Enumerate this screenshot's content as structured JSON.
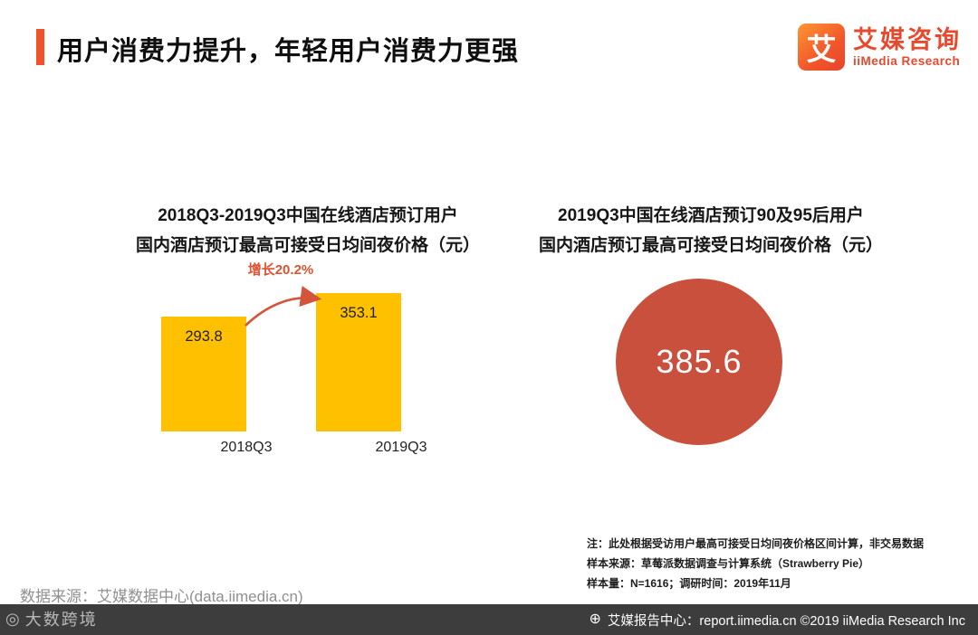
{
  "header": {
    "title": "用户消费力提升，年轻用户消费力更强",
    "accent_color": "#F0532A"
  },
  "logo": {
    "mark": "艾",
    "brand_cn": "艾媒咨询",
    "brand_en": "iiMedia Research",
    "brand_color": "#E6492D"
  },
  "chart_data": [
    {
      "type": "bar",
      "title_line1": "2018Q3-2019Q3中国在线酒店预订用户",
      "title_line2": "国内酒店预订最高可接受日均间夜价格（元）",
      "annotation": "增长20.2%",
      "annotation_color": "#DE5230",
      "categories": [
        "2018Q3",
        "2019Q3"
      ],
      "values": [
        293.8,
        353.1
      ],
      "bar_color": "#FFC000",
      "ylim": [
        0,
        400
      ],
      "legend": "none",
      "grid": "off"
    },
    {
      "type": "pie",
      "title_line1": "2019Q3中国在线酒店预订90及95后用户",
      "title_line2": "国内酒店预订最高可接受日均间夜价格（元）",
      "value": "385.6",
      "circle_color": "#C8503C"
    }
  ],
  "notes": {
    "line1": "注：此处根据受访用户最高可接受日均间夜价格区间计算，非交易数据",
    "line2": "样本来源：草莓派数据调查与计算系统（Strawberry Pie）",
    "line3": "样本量：N=1616；调研时间：2019年11月"
  },
  "footer": {
    "source": "数据来源：艾媒数据中心(data.iimedia.cn)",
    "watermark_logo": "◎",
    "watermark": "大数跨境",
    "report_icon": "⊕",
    "report_center": "艾媒报告中心：report.iimedia.cn ©2019  iiMedia Research Inc"
  }
}
